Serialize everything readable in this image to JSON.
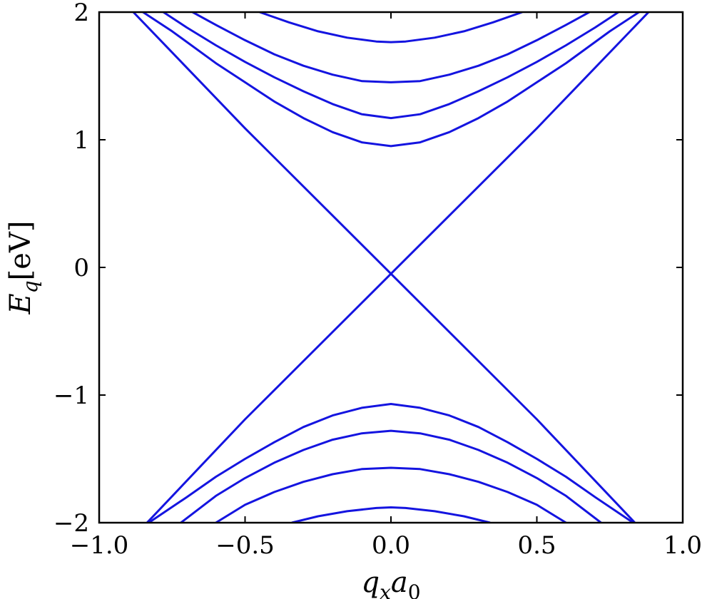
{
  "chart_data": {
    "type": "line",
    "xlabel": {
      "main": "q",
      "sub1": "x",
      "main2": "a",
      "sub2": "0"
    },
    "ylabel": {
      "main": "E",
      "sub": "q",
      "unit": "[eV]"
    },
    "xlim": [
      -1.0,
      1.0
    ],
    "ylim": [
      -2,
      2
    ],
    "xticks": [
      -1.0,
      -0.5,
      0.0,
      0.5,
      1.0
    ],
    "xtick_labels": [
      "−1.0",
      "−0.5",
      "0.0",
      "0.5",
      "1.0"
    ],
    "yticks": [
      -2,
      -1,
      0,
      1,
      2
    ],
    "ytick_labels": [
      "−2",
      "−1",
      "0",
      "1",
      "2"
    ],
    "grid": false,
    "line_color": "#1414e0",
    "series": [
      {
        "x": [
          -0.883,
          -0.5,
          0.0
        ],
        "y": [
          2.0,
          1.09,
          -0.05
        ]
      },
      {
        "x": [
          0.0,
          0.5,
          0.883
        ],
        "y": [
          -0.05,
          1.09,
          2.0
        ]
      },
      {
        "x": [
          -0.836,
          -0.5,
          0.0
        ],
        "y": [
          -2.0,
          -1.19,
          -0.05
        ]
      },
      {
        "x": [
          0.0,
          0.5,
          0.836
        ],
        "y": [
          -0.05,
          -1.19,
          -2.0
        ]
      },
      {
        "x": [
          -0.85,
          -0.75,
          -0.6,
          -0.5,
          -0.4,
          -0.3,
          -0.2,
          -0.1,
          0.0,
          0.1,
          0.2,
          0.3,
          0.4,
          0.5,
          0.6,
          0.75,
          0.85
        ],
        "y": [
          2.0,
          1.85,
          1.6,
          1.45,
          1.3,
          1.17,
          1.06,
          0.98,
          0.95,
          0.98,
          1.06,
          1.17,
          1.3,
          1.45,
          1.6,
          1.85,
          2.0
        ]
      },
      {
        "x": [
          -0.78,
          -0.7,
          -0.6,
          -0.5,
          -0.4,
          -0.3,
          -0.2,
          -0.1,
          0.0,
          0.1,
          0.2,
          0.3,
          0.4,
          0.5,
          0.6,
          0.7,
          0.78
        ],
        "y": [
          2.0,
          1.88,
          1.74,
          1.61,
          1.49,
          1.38,
          1.28,
          1.2,
          1.17,
          1.2,
          1.28,
          1.38,
          1.49,
          1.61,
          1.74,
          1.88,
          2.0
        ]
      },
      {
        "x": [
          -0.68,
          -0.6,
          -0.5,
          -0.4,
          -0.3,
          -0.2,
          -0.1,
          0.0,
          0.1,
          0.2,
          0.3,
          0.4,
          0.5,
          0.6,
          0.68
        ],
        "y": [
          2.0,
          1.9,
          1.78,
          1.67,
          1.58,
          1.51,
          1.46,
          1.45,
          1.46,
          1.51,
          1.58,
          1.67,
          1.78,
          1.9,
          2.0
        ]
      },
      {
        "x": [
          -0.45,
          -0.35,
          -0.25,
          -0.15,
          -0.05,
          0.0,
          0.05,
          0.15,
          0.25,
          0.35,
          0.45
        ],
        "y": [
          2.0,
          1.92,
          1.85,
          1.8,
          1.77,
          1.765,
          1.77,
          1.8,
          1.85,
          1.92,
          2.0
        ]
      },
      {
        "x": [
          -0.83,
          -0.7,
          -0.6,
          -0.5,
          -0.4,
          -0.3,
          -0.2,
          -0.1,
          0.0,
          0.1,
          0.2,
          0.3,
          0.4,
          0.5,
          0.6,
          0.7,
          0.83
        ],
        "y": [
          -2.0,
          -1.8,
          -1.64,
          -1.5,
          -1.37,
          -1.25,
          -1.16,
          -1.1,
          -1.07,
          -1.1,
          -1.16,
          -1.25,
          -1.37,
          -1.5,
          -1.64,
          -1.8,
          -2.0
        ]
      },
      {
        "x": [
          -0.72,
          -0.6,
          -0.5,
          -0.4,
          -0.3,
          -0.2,
          -0.1,
          0.0,
          0.1,
          0.2,
          0.3,
          0.4,
          0.5,
          0.6,
          0.72
        ],
        "y": [
          -2.0,
          -1.79,
          -1.65,
          -1.53,
          -1.43,
          -1.35,
          -1.3,
          -1.28,
          -1.3,
          -1.35,
          -1.43,
          -1.53,
          -1.65,
          -1.79,
          -2.0
        ]
      },
      {
        "x": [
          -0.6,
          -0.5,
          -0.4,
          -0.3,
          -0.2,
          -0.1,
          0.0,
          0.1,
          0.2,
          0.3,
          0.4,
          0.5,
          0.6
        ],
        "y": [
          -2.0,
          -1.86,
          -1.76,
          -1.68,
          -1.62,
          -1.58,
          -1.57,
          -1.58,
          -1.62,
          -1.68,
          -1.76,
          -1.86,
          -2.0
        ]
      },
      {
        "x": [
          -0.34,
          -0.25,
          -0.15,
          -0.05,
          0.0,
          0.05,
          0.15,
          0.25,
          0.34
        ],
        "y": [
          -2.0,
          -1.95,
          -1.91,
          -1.885,
          -1.88,
          -1.885,
          -1.91,
          -1.95,
          -2.0
        ]
      }
    ]
  }
}
